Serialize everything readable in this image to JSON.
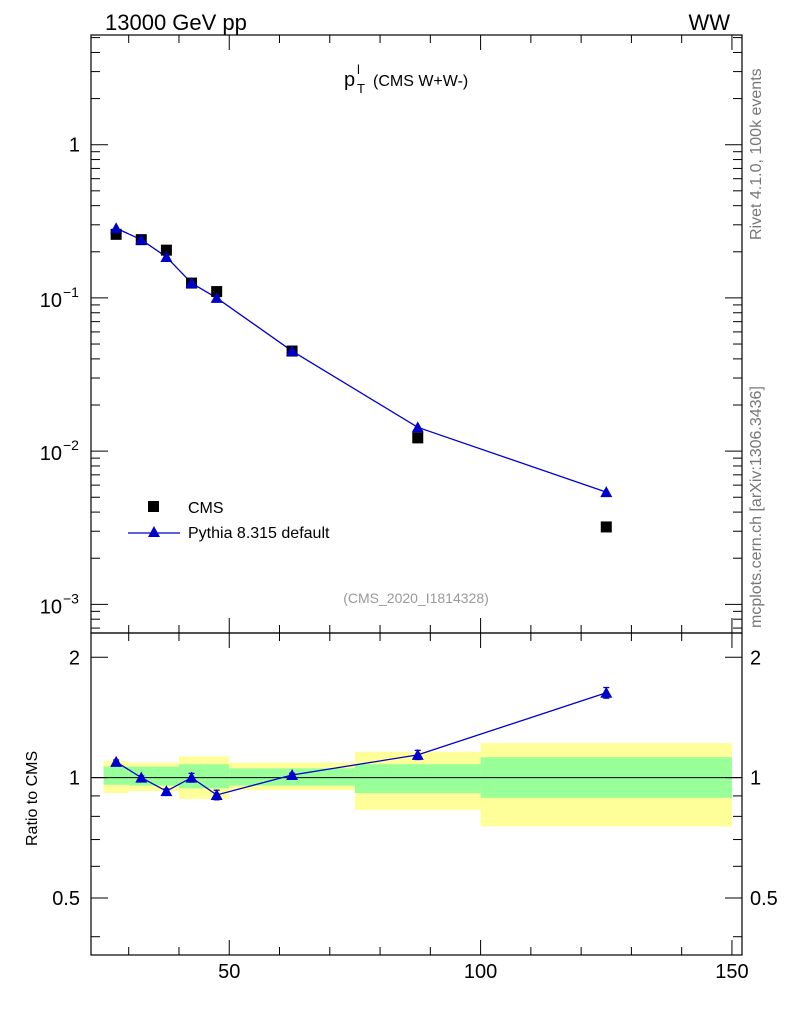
{
  "chart_data": {
    "type": "scatter",
    "header_left": "13000 GeV pp",
    "header_right": "WW",
    "title_main": "p",
    "title_sup": "l",
    "title_sub": "T",
    "title_rest": "(CMS W+W-)",
    "side_label_top": "Rivet 4.1.0,  100k events",
    "side_label_bottom": "mcplots.cern.ch [arXiv:1306.3436]",
    "analysis_label": "(CMS_2020_I1814328)",
    "ratio_ylabel": "Ratio to CMS",
    "xlim": [
      22.5,
      152
    ],
    "main_ylim": [
      0.00065,
      5.2
    ],
    "ratio_ylim": [
      0.36,
      2.3
    ],
    "x_ticks": [
      50,
      100,
      150
    ],
    "x_tick_labels": [
      "50",
      "100",
      "150"
    ],
    "main_y_ticks": [
      1,
      0.1,
      0.01,
      0.001
    ],
    "main_y_tick_labels": [
      {
        "base": "1",
        "exp": ""
      },
      {
        "base": "10",
        "exp": "−1"
      },
      {
        "base": "10",
        "exp": "−2"
      },
      {
        "base": "10",
        "exp": "−3"
      }
    ],
    "ratio_y_ticks": [
      0.5,
      1,
      2
    ],
    "ratio_y_tick_labels": [
      "0.5",
      "1",
      "2"
    ],
    "legend": [
      {
        "name": "CMS",
        "marker": "square",
        "color": "#000000"
      },
      {
        "name": "Pythia 8.315 default",
        "marker": "triangle",
        "color": "#0000cc"
      }
    ],
    "bins": [
      {
        "lo": 25,
        "hi": 30,
        "x": 27.5,
        "cms": 0.26,
        "pythia": 0.285,
        "ratio": 1.095,
        "ratio_err": 0.012,
        "band_inner": [
          0.96,
          1.065
        ],
        "band_outer": [
          0.915,
          1.1
        ]
      },
      {
        "lo": 30,
        "hi": 35,
        "x": 32.5,
        "cms": 0.24,
        "pythia": 0.24,
        "ratio": 1.0,
        "ratio_err": 0.01,
        "band_inner": [
          0.955,
          1.065
        ],
        "band_outer": [
          0.925,
          1.09
        ]
      },
      {
        "lo": 35,
        "hi": 40,
        "x": 37.5,
        "cms": 0.205,
        "pythia": 0.185,
        "ratio": 0.925,
        "ratio_err": 0.012,
        "band_inner": [
          0.955,
          1.065
        ],
        "band_outer": [
          0.925,
          1.09
        ]
      },
      {
        "lo": 40,
        "hi": 45,
        "x": 42.5,
        "cms": 0.125,
        "pythia": 0.125,
        "ratio": 1.0,
        "ratio_err": 0.025,
        "band_inner": [
          0.94,
          1.08
        ],
        "band_outer": [
          0.885,
          1.13
        ]
      },
      {
        "lo": 45,
        "hi": 50,
        "x": 47.5,
        "cms": 0.11,
        "pythia": 0.1,
        "ratio": 0.905,
        "ratio_err": 0.025,
        "band_inner": [
          0.94,
          1.08
        ],
        "band_outer": [
          0.885,
          1.13
        ]
      },
      {
        "lo": 50,
        "hi": 75,
        "x": 62.5,
        "cms": 0.045,
        "pythia": 0.045,
        "ratio": 1.015,
        "ratio_err": 0.01,
        "band_inner": [
          0.955,
          1.055
        ],
        "band_outer": [
          0.93,
          1.09
        ]
      },
      {
        "lo": 75,
        "hi": 100,
        "x": 87.5,
        "cms": 0.0122,
        "pythia": 0.0143,
        "ratio": 1.14,
        "ratio_err": 0.03,
        "band_inner": [
          0.915,
          1.08
        ],
        "band_outer": [
          0.83,
          1.16
        ]
      },
      {
        "lo": 100,
        "hi": 150,
        "x": 125,
        "cms": 0.0032,
        "pythia": 0.0054,
        "ratio": 1.63,
        "ratio_err": 0.05,
        "band_inner": [
          0.89,
          1.125
        ],
        "band_outer": [
          0.755,
          1.22
        ]
      }
    ],
    "band_colors": {
      "inner": "#99ff99",
      "outer": "#ffff99"
    },
    "cms_color": "#000000",
    "pythia_color": "#0000cc"
  }
}
